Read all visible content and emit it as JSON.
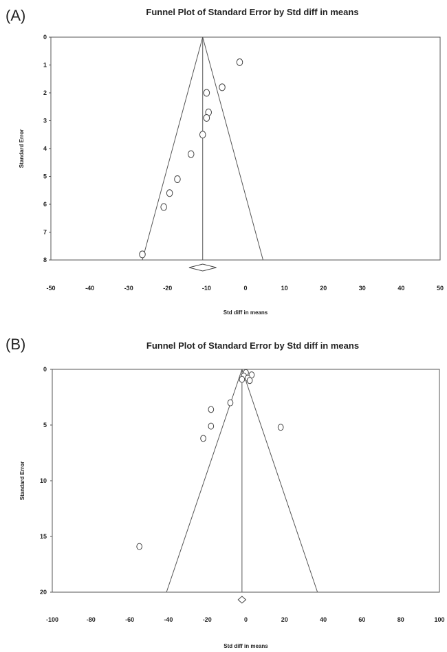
{
  "chart_data": [
    {
      "type": "scatter",
      "panel_label": "(A)",
      "title": "Funnel Plot of Standard Error by Std diff in means",
      "xlabel": "Std diff in means",
      "ylabel": "Standard Error",
      "xlim": [
        -50,
        50
      ],
      "ylim": [
        0,
        8
      ],
      "y_inverted": true,
      "x_ticks": [
        "-50",
        "-40",
        "-30",
        "-20",
        "-10",
        "0",
        "10",
        "20",
        "30",
        "40",
        "50"
      ],
      "y_ticks": [
        "0",
        "1",
        "2",
        "3",
        "4",
        "5",
        "6",
        "7",
        "8"
      ],
      "grid": false,
      "pooled_estimate": -11,
      "funnel_bottom": [
        -26.5,
        4.5
      ],
      "summary_diamond": [
        -14.5,
        -7.5
      ],
      "points": [
        {
          "x": -1.5,
          "y": 0.9
        },
        {
          "x": -6,
          "y": 1.8
        },
        {
          "x": -10,
          "y": 2.0
        },
        {
          "x": -9.5,
          "y": 2.7
        },
        {
          "x": -10,
          "y": 2.9
        },
        {
          "x": -11,
          "y": 3.5
        },
        {
          "x": -14,
          "y": 4.2
        },
        {
          "x": -17.5,
          "y": 5.1
        },
        {
          "x": -19.5,
          "y": 5.6
        },
        {
          "x": -21,
          "y": 6.1
        },
        {
          "x": -26.5,
          "y": 7.8
        }
      ]
    },
    {
      "type": "scatter",
      "panel_label": "(B)",
      "title": "Funnel Plot of Standard Error by Std diff in means",
      "xlabel": "Std diff in means",
      "ylabel": "Standard Error",
      "xlim": [
        -100,
        100
      ],
      "ylim": [
        0,
        20
      ],
      "y_inverted": true,
      "x_ticks": [
        "-100",
        "-80",
        "-60",
        "-40",
        "-20",
        "0",
        "20",
        "40",
        "60",
        "80",
        "100"
      ],
      "y_ticks": [
        "0",
        "5",
        "10",
        "15",
        "20"
      ],
      "grid": false,
      "pooled_estimate": -2,
      "funnel_bottom": [
        -41,
        37
      ],
      "summary_diamond": [
        -4,
        0
      ],
      "points": [
        {
          "x": 0,
          "y": 0.3
        },
        {
          "x": 3,
          "y": 0.5
        },
        {
          "x": -1,
          "y": 0.6
        },
        {
          "x": 1,
          "y": 0.8
        },
        {
          "x": -2,
          "y": 0.9
        },
        {
          "x": 2,
          "y": 1.0
        },
        {
          "x": -8,
          "y": 3.0
        },
        {
          "x": -18,
          "y": 3.6
        },
        {
          "x": -18,
          "y": 5.1
        },
        {
          "x": 18,
          "y": 5.2
        },
        {
          "x": -22,
          "y": 6.2
        },
        {
          "x": -55,
          "y": 15.9
        }
      ]
    }
  ]
}
